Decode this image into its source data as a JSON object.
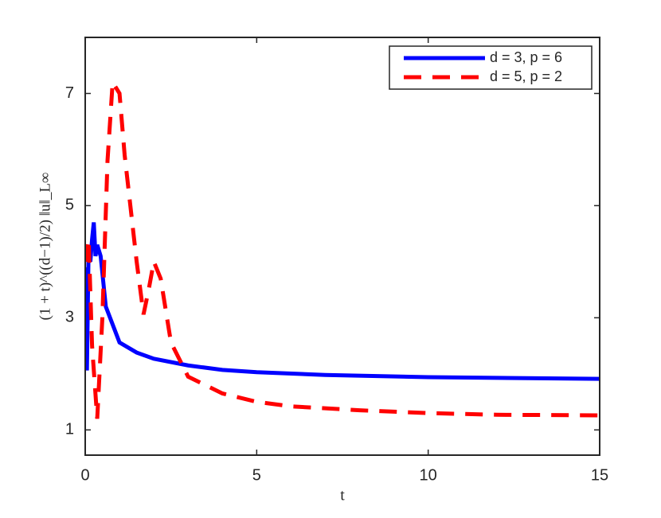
{
  "chart_data": {
    "type": "line",
    "xlabel": "t",
    "ylabel": "(1 + t)^((d−1)/2) ‖u‖_L∞",
    "xlim": [
      0,
      15
    ],
    "xticks": [
      0,
      5,
      10,
      15
    ],
    "ylim": [
      0.55,
      8
    ],
    "yticks": [
      1,
      3,
      5,
      7
    ],
    "legend": "upper right",
    "series": [
      {
        "name": "d = 3, p = 6",
        "color": "#0000ff",
        "dash": "solid",
        "x": [
          0,
          0.05,
          0.1,
          0.15,
          0.2,
          0.25,
          0.3,
          0.35,
          0.45,
          0.6,
          1.0,
          1.5,
          2,
          3,
          4,
          5,
          7,
          10,
          15
        ],
        "values": [
          3.9,
          2.06,
          4.3,
          4.0,
          4.4,
          4.7,
          4.1,
          4.3,
          4.1,
          3.2,
          2.56,
          2.38,
          2.27,
          2.15,
          2.07,
          2.03,
          1.98,
          1.94,
          1.91
        ]
      },
      {
        "name": "d = 5, p = 2",
        "color": "#ff0000",
        "dash": "dashed",
        "x": [
          0,
          0.1,
          0.2,
          0.35,
          0.5,
          0.65,
          0.8,
          1.0,
          1.15,
          1.5,
          1.7,
          1.85,
          2.0,
          2.2,
          2.5,
          3,
          4,
          5,
          6,
          8,
          10,
          12,
          15
        ],
        "values": [
          4.0,
          4.4,
          2.5,
          1.2,
          3.0,
          5.8,
          7.2,
          7.0,
          5.9,
          4.0,
          3.06,
          3.5,
          4.0,
          3.7,
          2.56,
          1.95,
          1.65,
          1.5,
          1.42,
          1.35,
          1.3,
          1.27,
          1.26
        ]
      }
    ]
  }
}
